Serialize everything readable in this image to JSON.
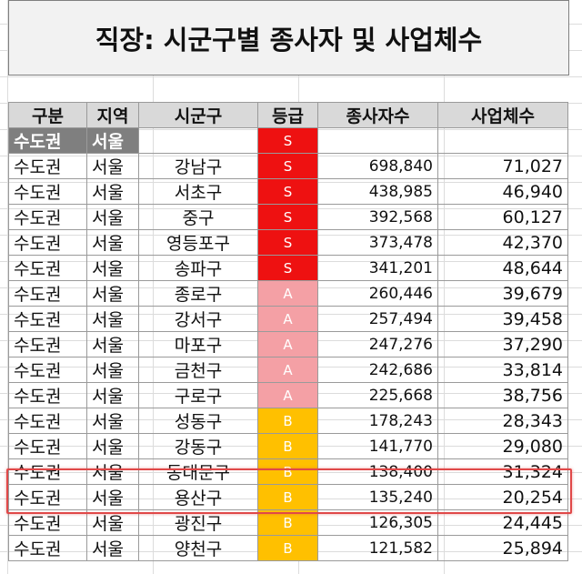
{
  "title": "직장: 시군구별 종사자 및 사업체수",
  "headers": [
    "구분",
    "지역",
    "시군구",
    "등급",
    "종사자수",
    "사업체수"
  ],
  "group_row": {
    "region": "수도권",
    "area": "서울",
    "grade": "S"
  },
  "grade_colors": {
    "S": "#ee1111",
    "A": "#f4a0a5",
    "B": "#ffc000"
  },
  "highlight_color": "#e04848",
  "highlighted_city": "동대문구",
  "rows": [
    {
      "region": "수도권",
      "area": "서울",
      "city": "강남구",
      "grade": "S",
      "employees": "698,840",
      "businesses": "71,027"
    },
    {
      "region": "수도권",
      "area": "서울",
      "city": "서초구",
      "grade": "S",
      "employees": "438,985",
      "businesses": "46,940"
    },
    {
      "region": "수도권",
      "area": "서울",
      "city": "중구",
      "grade": "S",
      "employees": "392,568",
      "businesses": "60,127"
    },
    {
      "region": "수도권",
      "area": "서울",
      "city": "영등포구",
      "grade": "S",
      "employees": "373,478",
      "businesses": "42,370"
    },
    {
      "region": "수도권",
      "area": "서울",
      "city": "송파구",
      "grade": "S",
      "employees": "341,201",
      "businesses": "48,644"
    },
    {
      "region": "수도권",
      "area": "서울",
      "city": "종로구",
      "grade": "A",
      "employees": "260,446",
      "businesses": "39,679"
    },
    {
      "region": "수도권",
      "area": "서울",
      "city": "강서구",
      "grade": "A",
      "employees": "257,494",
      "businesses": "39,458"
    },
    {
      "region": "수도권",
      "area": "서울",
      "city": "마포구",
      "grade": "A",
      "employees": "247,276",
      "businesses": "37,290"
    },
    {
      "region": "수도권",
      "area": "서울",
      "city": "금천구",
      "grade": "A",
      "employees": "242,686",
      "businesses": "33,814"
    },
    {
      "region": "수도권",
      "area": "서울",
      "city": "구로구",
      "grade": "A",
      "employees": "225,668",
      "businesses": "38,756"
    },
    {
      "region": "수도권",
      "area": "서울",
      "city": "성동구",
      "grade": "B",
      "employees": "178,243",
      "businesses": "28,343"
    },
    {
      "region": "수도권",
      "area": "서울",
      "city": "강동구",
      "grade": "B",
      "employees": "141,770",
      "businesses": "29,080"
    },
    {
      "region": "수도권",
      "area": "서울",
      "city": "동대문구",
      "grade": "B",
      "employees": "138,400",
      "businesses": "31,324"
    },
    {
      "region": "수도권",
      "area": "서울",
      "city": "용산구",
      "grade": "B",
      "employees": "135,240",
      "businesses": "20,254"
    },
    {
      "region": "수도권",
      "area": "서울",
      "city": "광진구",
      "grade": "B",
      "employees": "126,305",
      "businesses": "24,445"
    },
    {
      "region": "수도권",
      "area": "서울",
      "city": "양천구",
      "grade": "B",
      "employees": "121,582",
      "businesses": "25,894"
    }
  ]
}
